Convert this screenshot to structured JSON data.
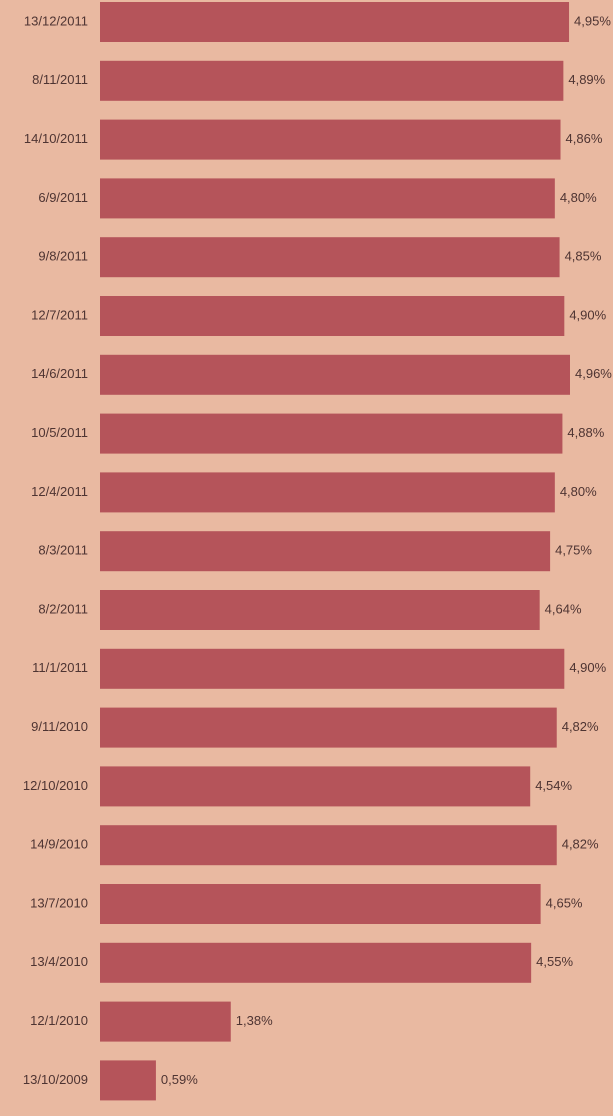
{
  "chart_data": {
    "type": "bar",
    "orientation": "horizontal",
    "categories": [
      "13/12/2011",
      "8/11/2011",
      "14/10/2011",
      "6/9/2011",
      "9/8/2011",
      "12/7/2011",
      "14/6/2011",
      "10/5/2011",
      "12/4/2011",
      "8/3/2011",
      "8/2/2011",
      "11/1/2011",
      "9/11/2010",
      "12/10/2010",
      "14/9/2010",
      "13/7/2010",
      "13/4/2010",
      "12/1/2010",
      "13/10/2009"
    ],
    "values": [
      4.95,
      4.89,
      4.86,
      4.8,
      4.85,
      4.9,
      4.96,
      4.88,
      4.8,
      4.75,
      4.64,
      4.9,
      4.82,
      4.54,
      4.82,
      4.65,
      4.55,
      1.38,
      0.59
    ],
    "value_labels": [
      "4,95%",
      "4,89%",
      "4,86%",
      "4,80%",
      "4,85%",
      "4,90%",
      "4,96%",
      "4,88%",
      "4,80%",
      "4,75%",
      "4,64%",
      "4,90%",
      "4,82%",
      "4,54%",
      "4,82%",
      "4,65%",
      "4,55%",
      "1,38%",
      "0,59%"
    ],
    "color": "#b5545a"
  }
}
